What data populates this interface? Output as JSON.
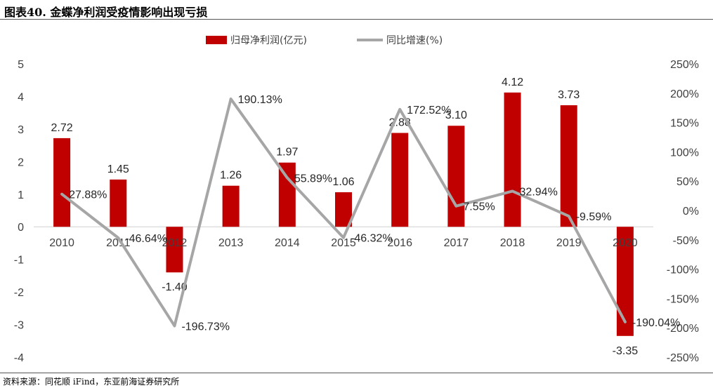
{
  "header": {
    "title": "图表40. 金蝶净利润受疫情影响出现亏损"
  },
  "footer": {
    "source": "资料来源：同花顺 iFind，东亚前海证券研究所"
  },
  "chart_data": {
    "type": "bar",
    "categories": [
      "2010",
      "2011",
      "2012",
      "2013",
      "2014",
      "2015",
      "2016",
      "2017",
      "2018",
      "2019",
      "2020"
    ],
    "series": [
      {
        "name": "归母净利润(亿元)",
        "type": "bar",
        "axis": "left",
        "color": "#C00000",
        "values": [
          2.72,
          1.45,
          -1.4,
          1.26,
          1.97,
          1.06,
          2.88,
          3.1,
          4.12,
          3.73,
          -3.35
        ],
        "labels": [
          "2.72",
          "1.45",
          "-1.40",
          "1.26",
          "1.97",
          "1.06",
          "2.88",
          "3.10",
          "4.12",
          "3.73",
          "-3.35"
        ]
      },
      {
        "name": "同比增速(%)",
        "type": "line",
        "axis": "right",
        "color": "#A6A6A6",
        "values": [
          27.88,
          -46.64,
          -196.73,
          190.13,
          55.89,
          -46.32,
          172.52,
          7.55,
          32.94,
          -9.59,
          -190.04
        ],
        "labels": [
          "27.88%",
          "-46.64%",
          "-196.73%",
          "190.13%",
          "55.89%",
          "-46.32%",
          "172.52%",
          "7.55%",
          "32.94%",
          "-9.59%",
          "-190.04%"
        ]
      }
    ],
    "left_axis": {
      "ylim": [
        -4,
        5
      ],
      "ticks": [
        "5",
        "4",
        "3",
        "2",
        "1",
        "0",
        "-1",
        "-2",
        "-3",
        "-4"
      ]
    },
    "right_axis": {
      "ylim": [
        -250,
        250
      ],
      "ticks": [
        "250%",
        "200%",
        "150%",
        "100%",
        "50%",
        "0%",
        "-50%",
        "-100%",
        "-150%",
        "-200%",
        "-250%"
      ]
    },
    "legend": {
      "position": "top-center"
    },
    "grid": false
  }
}
